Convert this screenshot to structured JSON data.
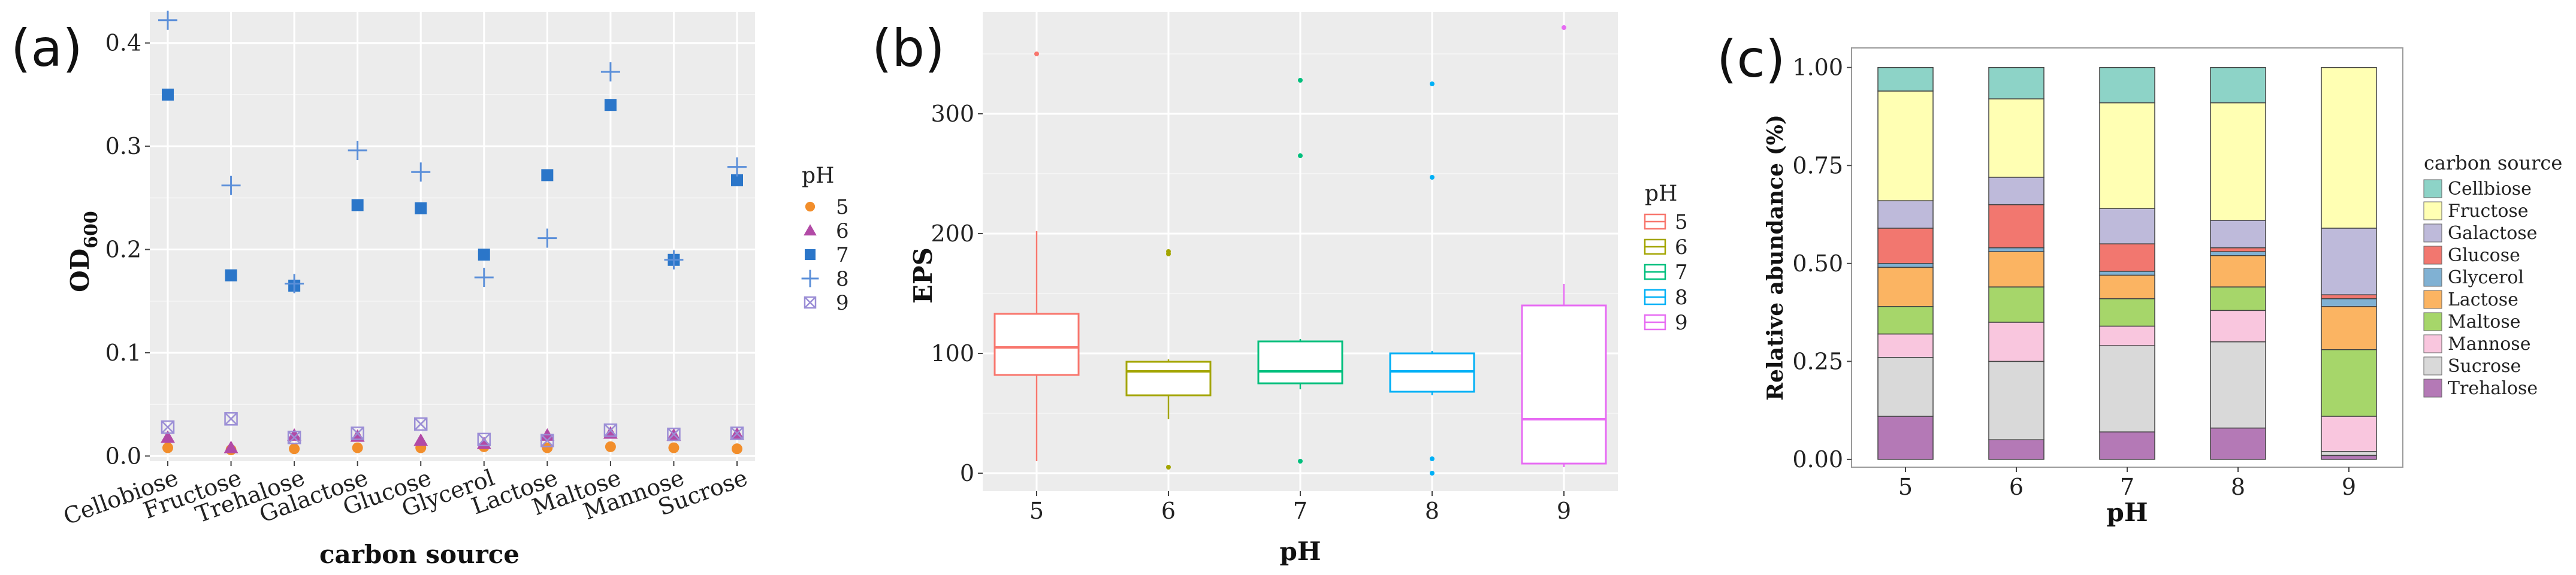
{
  "panel_labels": {
    "a": "(a)",
    "b": "(b)",
    "c": "(c)"
  },
  "chart_data": [
    {
      "type": "scatter",
      "id": "a",
      "xlabel": "carbon source",
      "ylabel_main": "OD",
      "ylabel_sub": "600",
      "ylim": [
        -0.005,
        0.43
      ],
      "yticks": [
        "0.0",
        "0.1",
        "0.2",
        "0.3",
        "0.4"
      ],
      "ytick_values": [
        0,
        0.1,
        0.2,
        0.3,
        0.4
      ],
      "categories": [
        "Cellobiose",
        "Fructose",
        "Trehalose",
        "Galactose",
        "Glucose",
        "Glycerol",
        "Lactose",
        "Maltose",
        "Mannose",
        "Sucrose"
      ],
      "legend_title": "pH",
      "series": [
        {
          "name": "5",
          "marker": "circle",
          "color": "#f28e2b",
          "values": [
            0.008,
            0.006,
            0.007,
            0.008,
            0.008,
            0.009,
            0.008,
            0.009,
            0.008,
            0.007
          ]
        },
        {
          "name": "6",
          "marker": "triangle",
          "color": "#b24aa6",
          "values": [
            0.018,
            0.008,
            0.02,
            0.019,
            0.015,
            0.012,
            0.02,
            0.022,
            0.02,
            0.021
          ]
        },
        {
          "name": "7",
          "marker": "square",
          "color": "#2b76c9",
          "values": [
            0.35,
            0.175,
            0.165,
            0.243,
            0.24,
            0.195,
            0.272,
            0.34,
            0.19,
            0.267
          ]
        },
        {
          "name": "8",
          "marker": "plus",
          "color": "#5b8fd9",
          "values": [
            0.422,
            0.262,
            0.167,
            0.296,
            0.275,
            0.173,
            0.211,
            0.372,
            0.19,
            0.28
          ]
        },
        {
          "name": "9",
          "marker": "boxx",
          "color": "#9b8ed6",
          "values": [
            0.028,
            0.036,
            0.018,
            0.022,
            0.031,
            0.016,
            0.015,
            0.025,
            0.021,
            0.022
          ]
        }
      ]
    },
    {
      "type": "box",
      "id": "b",
      "xlabel": "pH",
      "ylabel": "EPS",
      "ylim": [
        -15,
        385
      ],
      "yticks": [
        "0",
        "100",
        "200",
        "300"
      ],
      "ytick_values": [
        0,
        100,
        200,
        300
      ],
      "legend_title": "pH",
      "boxes": [
        {
          "name": "5",
          "color": "#f8766d",
          "min": 10,
          "q1": 82,
          "median": 105,
          "q3": 133,
          "max": 202,
          "outliers": [
            350
          ]
        },
        {
          "name": "6",
          "color": "#a3a500",
          "min": 45,
          "q1": 65,
          "median": 85,
          "q3": 93,
          "max": 95,
          "outliers": [
            5,
            183,
            185
          ]
        },
        {
          "name": "7",
          "color": "#00bf7d",
          "min": 70,
          "q1": 75,
          "median": 85,
          "q3": 110,
          "max": 112,
          "outliers": [
            10,
            265,
            328
          ]
        },
        {
          "name": "8",
          "color": "#00b0f6",
          "min": 65,
          "q1": 68,
          "median": 85,
          "q3": 100,
          "max": 102,
          "outliers": [
            0,
            12,
            247,
            325
          ]
        },
        {
          "name": "9",
          "color": "#e76bf3",
          "min": 5,
          "q1": 8,
          "median": 45,
          "q3": 140,
          "max": 158,
          "outliers": [
            372
          ]
        }
      ]
    },
    {
      "type": "stacked_bar",
      "id": "c",
      "xlabel": "pH",
      "ylabel": "Relative abundance (%)",
      "ylim": [
        -0.02,
        1.05
      ],
      "yticks": [
        "0.00",
        "0.25",
        "0.50",
        "0.75",
        "1.00"
      ],
      "ytick_values": [
        0,
        0.25,
        0.5,
        0.75,
        1.0
      ],
      "categories": [
        "5",
        "6",
        "7",
        "8",
        "9"
      ],
      "legend_title": "carbon source",
      "series": [
        {
          "name": "Trehalose",
          "color": "#b479b6",
          "values": [
            0.11,
            0.05,
            0.07,
            0.08,
            0.01
          ]
        },
        {
          "name": "Sucrose",
          "color": "#d9d9d9",
          "values": [
            0.15,
            0.2,
            0.22,
            0.22,
            0.01
          ]
        },
        {
          "name": "Mannose",
          "color": "#f9c6de",
          "values": [
            0.06,
            0.1,
            0.05,
            0.08,
            0.09
          ]
        },
        {
          "name": "Maltose",
          "color": "#a6d66a",
          "values": [
            0.07,
            0.09,
            0.07,
            0.06,
            0.17
          ]
        },
        {
          "name": "Lactose",
          "color": "#fbb462",
          "values": [
            0.1,
            0.09,
            0.06,
            0.08,
            0.11
          ]
        },
        {
          "name": "Glycerol",
          "color": "#80b1d3",
          "values": [
            0.01,
            0.01,
            0.01,
            0.01,
            0.02
          ]
        },
        {
          "name": "Glucose",
          "color": "#f2776f",
          "values": [
            0.09,
            0.11,
            0.07,
            0.01,
            0.01
          ]
        },
        {
          "name": "Galactose",
          "color": "#bebada",
          "values": [
            0.07,
            0.07,
            0.09,
            0.07,
            0.17
          ]
        },
        {
          "name": "Fructose",
          "color": "#ffffb3",
          "values": [
            0.28,
            0.2,
            0.27,
            0.3,
            0.41
          ]
        },
        {
          "name": "Cellbiose",
          "color": "#8dd3c7",
          "values": [
            0.06,
            0.08,
            0.09,
            0.09,
            0.0
          ]
        }
      ],
      "legend_order": [
        "Cellbiose",
        "Fructose",
        "Galactose",
        "Glucose",
        "Glycerol",
        "Lactose",
        "Maltose",
        "Mannose",
        "Sucrose",
        "Trehalose"
      ]
    }
  ]
}
